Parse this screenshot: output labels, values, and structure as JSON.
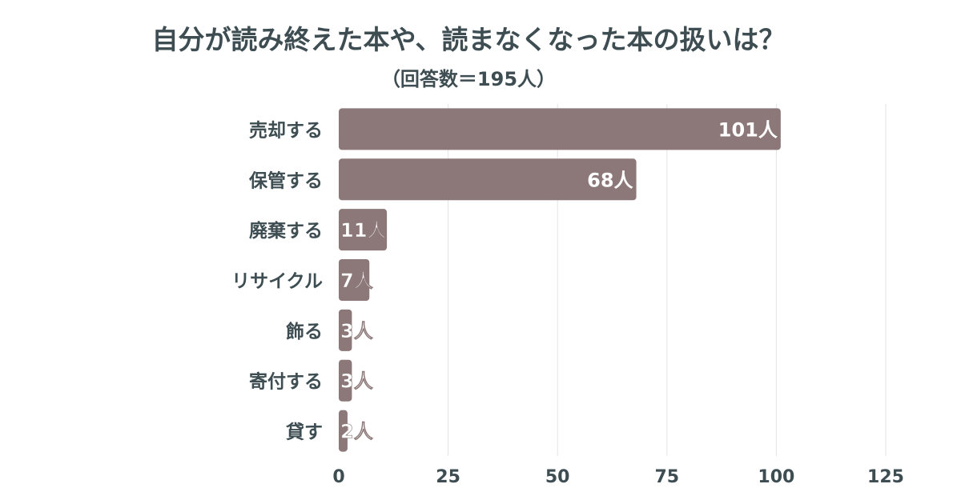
{
  "chart_data": {
    "type": "bar",
    "orientation": "horizontal",
    "title": "自分が読み終えた本や、読まなくなった本の扱いは？",
    "subtitle": "（回答数＝195人）",
    "categories": [
      "売却する",
      "保管する",
      "廃棄する",
      "リサイクル",
      "飾る",
      "寄付する",
      "貸す"
    ],
    "values": [
      101,
      68,
      11,
      7,
      3,
      3,
      2
    ],
    "data_labels": [
      "101人",
      "68人",
      "11人",
      "7人",
      "3人",
      "3人",
      "2人"
    ],
    "xlim": [
      0,
      125
    ],
    "xticks": [
      "0",
      "25",
      "50",
      "75",
      "100",
      "125"
    ],
    "xtick_values": [
      0,
      25,
      50,
      75,
      100,
      125
    ],
    "grid": "vertical",
    "legend": "none",
    "bar_color": "#8c7878",
    "text_color": "#3d4d52",
    "grid_color": "#e3e3e3"
  }
}
